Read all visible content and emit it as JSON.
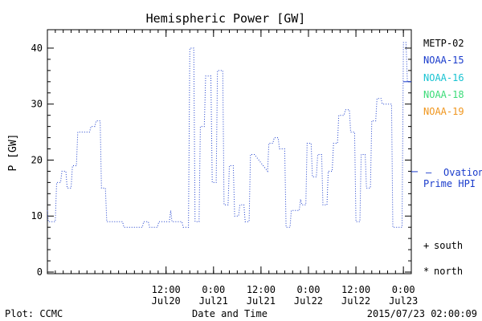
{
  "chart_data": {
    "type": "line",
    "title": "Hemispheric Power [GW]",
    "xlabel": "Date and Time",
    "ylabel": "P [GW]",
    "ylim": [
      0,
      42
    ],
    "yticks": [
      0,
      10,
      20,
      30,
      40
    ],
    "xlim": [
      "2015-07-19T06:00",
      "2015-07-23T02:00"
    ],
    "xticks": [
      {
        "at": "2015-07-20T12:00",
        "time": "12:00",
        "date": "Jul20"
      },
      {
        "at": "2015-07-21T00:00",
        "time": "0:00",
        "date": "Jul21"
      },
      {
        "at": "2015-07-21T12:00",
        "time": "12:00",
        "date": "Jul21"
      },
      {
        "at": "2015-07-22T00:00",
        "time": "0:00",
        "date": "Jul22"
      },
      {
        "at": "2015-07-22T12:00",
        "time": "12:00",
        "date": "Jul22"
      },
      {
        "at": "2015-07-23T00:00",
        "time": "0:00",
        "date": "Jul23"
      }
    ],
    "legend": [
      {
        "label": "METP-02",
        "color": "#000000"
      },
      {
        "label": "NOAA-15",
        "color": "#1a3ccc"
      },
      {
        "label": "NOAA-16",
        "color": "#19c3d2"
      },
      {
        "label": "NOAA-18",
        "color": "#3cdc78"
      },
      {
        "label": "NOAA-19",
        "color": "#f0961e"
      }
    ],
    "ovation": {
      "label_line1": "Ovation",
      "label_line2": "Prime HPI",
      "marker": "—",
      "color": "#1a3ccc",
      "value": 17.5
    },
    "symbols": [
      {
        "marker": "+",
        "label": "south"
      },
      {
        "marker": "*",
        "label": "north"
      }
    ],
    "latest_right_axis": {
      "value": 34,
      "color": "#1a3ccc"
    },
    "series": [
      {
        "name": "NOAA-15",
        "color": "#1a3ccc",
        "style": "dotted",
        "points": [
          [
            "2015-07-19T06:00",
            11
          ],
          [
            "2015-07-19T06:15",
            9
          ],
          [
            "2015-07-19T08:00",
            9
          ],
          [
            "2015-07-19T08:20",
            16
          ],
          [
            "2015-07-19T09:20",
            16
          ],
          [
            "2015-07-19T09:40",
            18
          ],
          [
            "2015-07-19T10:40",
            18
          ],
          [
            "2015-07-19T11:00",
            15
          ],
          [
            "2015-07-19T12:00",
            15
          ],
          [
            "2015-07-19T12:20",
            19
          ],
          [
            "2015-07-19T13:20",
            19
          ],
          [
            "2015-07-19T13:40",
            25
          ],
          [
            "2015-07-19T16:40",
            25
          ],
          [
            "2015-07-19T17:00",
            26
          ],
          [
            "2015-07-19T18:00",
            26
          ],
          [
            "2015-07-19T18:20",
            27
          ],
          [
            "2015-07-19T19:20",
            27
          ],
          [
            "2015-07-19T19:40",
            15
          ],
          [
            "2015-07-19T20:40",
            15
          ],
          [
            "2015-07-19T21:00",
            9
          ],
          [
            "2015-07-20T01:00",
            9
          ],
          [
            "2015-07-20T01:20",
            8
          ],
          [
            "2015-07-20T06:00",
            8
          ],
          [
            "2015-07-20T06:20",
            9
          ],
          [
            "2015-07-20T07:30",
            9
          ],
          [
            "2015-07-20T07:50",
            8
          ],
          [
            "2015-07-20T09:50",
            8
          ],
          [
            "2015-07-20T10:10",
            9
          ],
          [
            "2015-07-20T12:50",
            9
          ],
          [
            "2015-07-20T13:10",
            11
          ],
          [
            "2015-07-20T13:30",
            9
          ],
          [
            "2015-07-20T16:00",
            9
          ],
          [
            "2015-07-20T16:20",
            8
          ],
          [
            "2015-07-20T17:40",
            8
          ],
          [
            "2015-07-20T18:00",
            40
          ],
          [
            "2015-07-20T19:00",
            40
          ],
          [
            "2015-07-20T19:20",
            9
          ],
          [
            "2015-07-20T20:20",
            9
          ],
          [
            "2015-07-20T20:40",
            26
          ],
          [
            "2015-07-20T21:40",
            26
          ],
          [
            "2015-07-20T22:00",
            35
          ],
          [
            "2015-07-20T23:20",
            35
          ],
          [
            "2015-07-20T23:40",
            16
          ],
          [
            "2015-07-21T00:40",
            16
          ],
          [
            "2015-07-21T01:00",
            36
          ],
          [
            "2015-07-21T02:20",
            36
          ],
          [
            "2015-07-21T02:40",
            12
          ],
          [
            "2015-07-21T03:40",
            12
          ],
          [
            "2015-07-21T04:00",
            19
          ],
          [
            "2015-07-21T05:00",
            19
          ],
          [
            "2015-07-21T05:20",
            10
          ],
          [
            "2015-07-21T06:20",
            10
          ],
          [
            "2015-07-21T06:40",
            12
          ],
          [
            "2015-07-21T07:40",
            12
          ],
          [
            "2015-07-21T08:00",
            9
          ],
          [
            "2015-07-21T09:00",
            9
          ],
          [
            "2015-07-21T09:20",
            21
          ],
          [
            "2015-07-21T10:20",
            21
          ],
          [
            "2015-07-21T13:40",
            18
          ],
          [
            "2015-07-21T14:00",
            23
          ],
          [
            "2015-07-21T15:00",
            23
          ],
          [
            "2015-07-21T15:20",
            24
          ],
          [
            "2015-07-21T16:20",
            24
          ],
          [
            "2015-07-21T16:40",
            22
          ],
          [
            "2015-07-21T18:00",
            22
          ],
          [
            "2015-07-21T18:20",
            8
          ],
          [
            "2015-07-21T19:20",
            8
          ],
          [
            "2015-07-21T19:40",
            11
          ],
          [
            "2015-07-21T21:40",
            11
          ],
          [
            "2015-07-21T22:00",
            13
          ],
          [
            "2015-07-21T22:20",
            12
          ],
          [
            "2015-07-21T23:20",
            12
          ],
          [
            "2015-07-21T23:40",
            23
          ],
          [
            "2015-07-22T00:40",
            23
          ],
          [
            "2015-07-22T01:00",
            17
          ],
          [
            "2015-07-22T02:00",
            17
          ],
          [
            "2015-07-22T02:20",
            21
          ],
          [
            "2015-07-22T03:20",
            21
          ],
          [
            "2015-07-22T03:40",
            12
          ],
          [
            "2015-07-22T04:40",
            12
          ],
          [
            "2015-07-22T05:00",
            18
          ],
          [
            "2015-07-22T06:00",
            18
          ],
          [
            "2015-07-22T06:20",
            23
          ],
          [
            "2015-07-22T07:20",
            23
          ],
          [
            "2015-07-22T07:40",
            28
          ],
          [
            "2015-07-22T09:00",
            28
          ],
          [
            "2015-07-22T09:20",
            29
          ],
          [
            "2015-07-22T10:20",
            29
          ],
          [
            "2015-07-22T10:40",
            25
          ],
          [
            "2015-07-22T11:40",
            25
          ],
          [
            "2015-07-22T12:00",
            9
          ],
          [
            "2015-07-22T13:00",
            9
          ],
          [
            "2015-07-22T13:20",
            21
          ],
          [
            "2015-07-22T14:20",
            21
          ],
          [
            "2015-07-22T14:40",
            15
          ],
          [
            "2015-07-22T15:40",
            15
          ],
          [
            "2015-07-22T16:00",
            27
          ],
          [
            "2015-07-22T17:00",
            27
          ],
          [
            "2015-07-22T17:20",
            31
          ],
          [
            "2015-07-22T18:20",
            31
          ],
          [
            "2015-07-22T18:40",
            30
          ],
          [
            "2015-07-22T21:00",
            30
          ],
          [
            "2015-07-22T21:20",
            8
          ],
          [
            "2015-07-22T23:40",
            8
          ],
          [
            "2015-07-23T00:00",
            41
          ],
          [
            "2015-07-23T00:40",
            41
          ],
          [
            "2015-07-23T01:00",
            34
          ],
          [
            "2015-07-23T02:00",
            34
          ]
        ]
      }
    ]
  },
  "footer": {
    "left": "Plot: CCMC",
    "center": "Date and Time",
    "right": "2015/07/23 02:00:09"
  }
}
